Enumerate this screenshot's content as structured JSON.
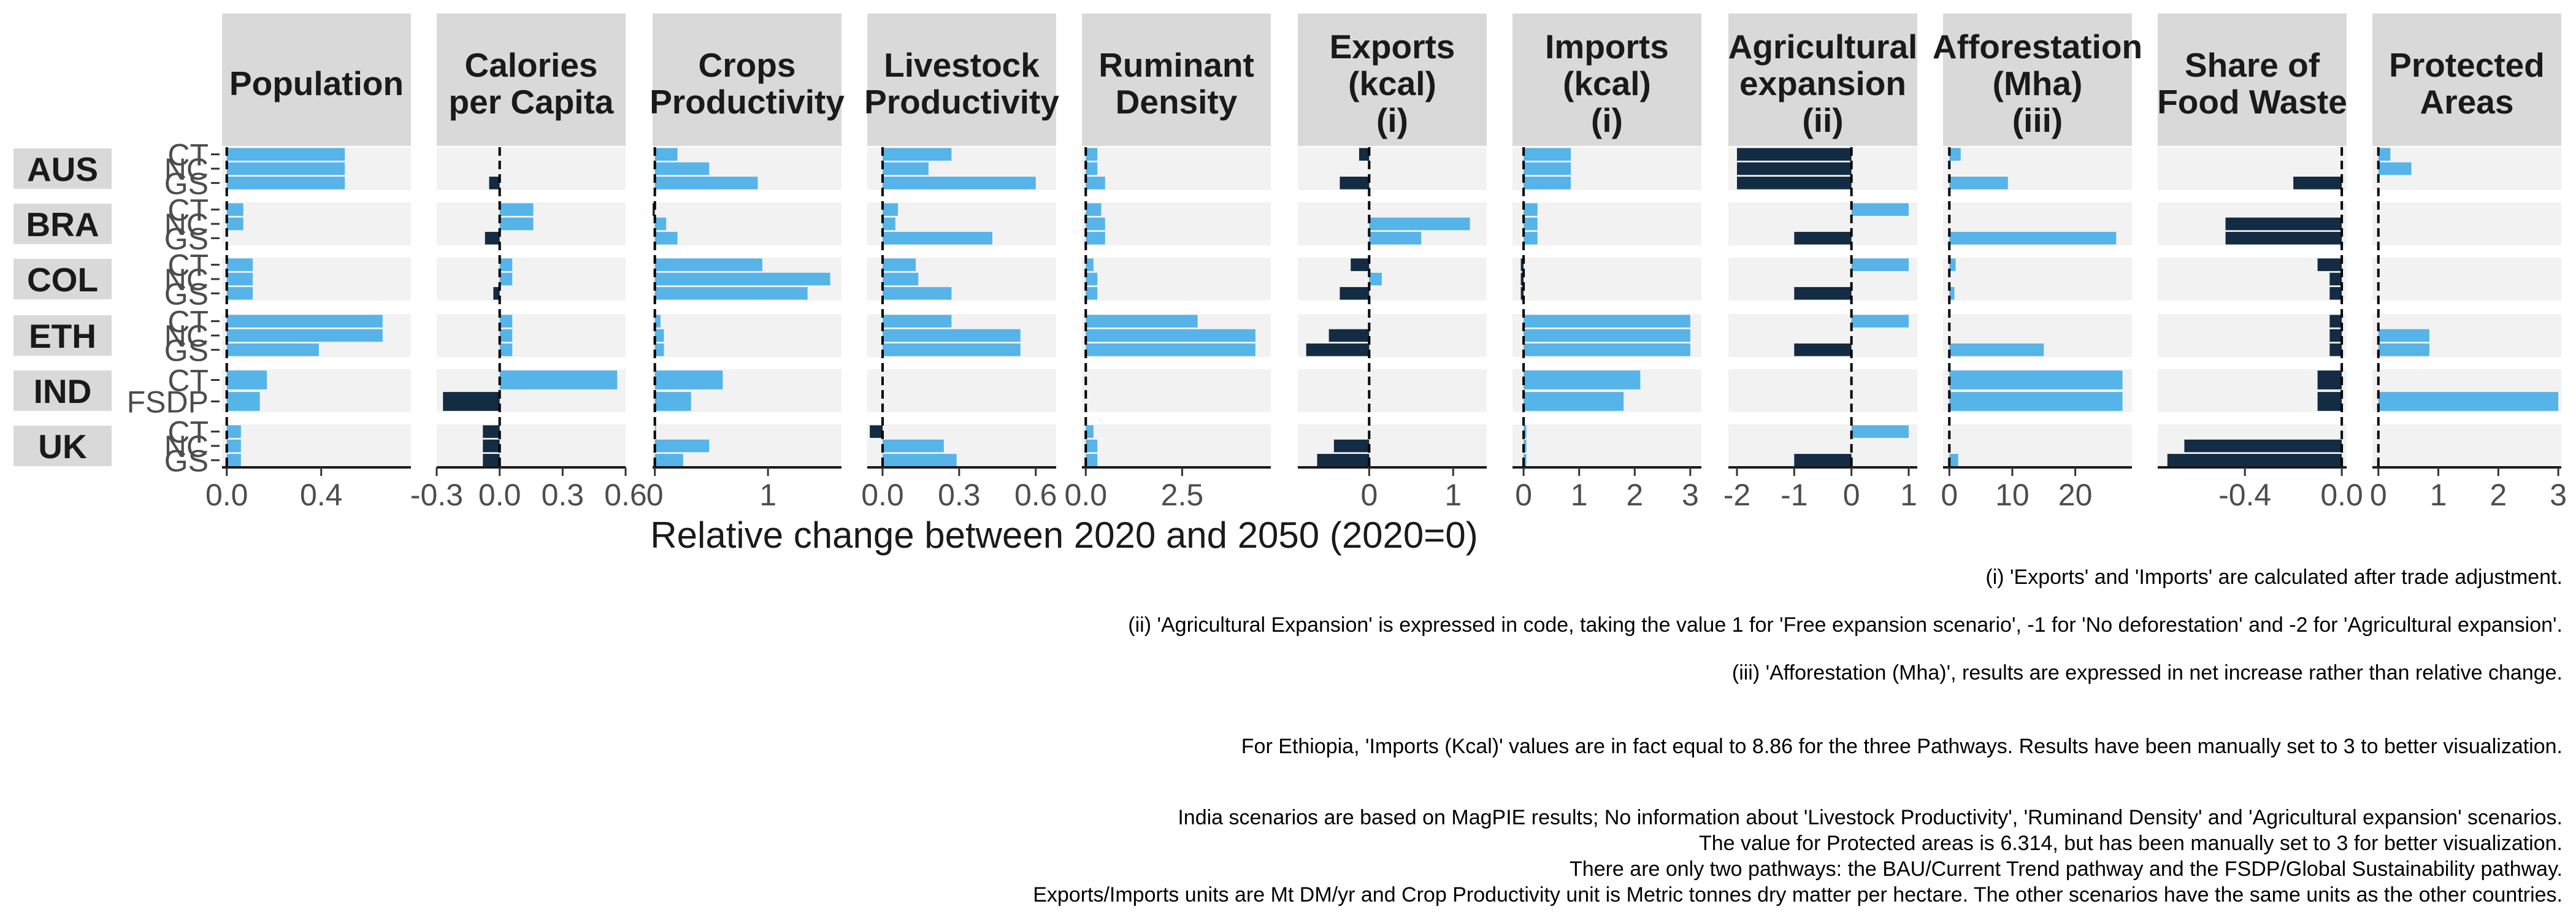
{
  "chart_data": {
    "type": "bar",
    "xlabel": "Relative change between 2020 and 2050 (2020=0)",
    "colors": {
      "positive": "#56B4E9",
      "negative": "#132B43",
      "panel_bg": "#F2F2F2",
      "strip_bg": "#D9D9D9",
      "zero_line": "#000000"
    },
    "countries": [
      "AUS",
      "BRA",
      "COL",
      "ETH",
      "IND",
      "UK"
    ],
    "row_labels": {
      "AUS": [
        "CT",
        "NC",
        "GS"
      ],
      "BRA": [
        "CT",
        "NC",
        "GS"
      ],
      "COL": [
        "CT",
        "NC",
        "GS"
      ],
      "ETH": [
        "CT",
        "NC",
        "GS"
      ],
      "IND": [
        "CT",
        "FSDP"
      ],
      "UK": [
        "CT",
        "NC",
        "GS"
      ]
    },
    "panels": [
      {
        "title": [
          "Population"
        ],
        "xlim": [
          -0.02,
          0.78
        ],
        "ticks": [
          0.0,
          0.4
        ],
        "tick_labels": [
          "0.0",
          "0.4"
        ],
        "values": {
          "AUS": [
            0.5,
            0.5,
            0.5
          ],
          "BRA": [
            0.07,
            0.07,
            0.0
          ],
          "COL": [
            0.11,
            0.11,
            0.11
          ],
          "ETH": [
            0.66,
            0.66,
            0.39
          ],
          "IND": [
            0.17,
            0.14
          ],
          "UK": [
            0.06,
            0.06,
            0.06
          ]
        }
      },
      {
        "title": [
          "Calories",
          "per Capita"
        ],
        "xlim": [
          -0.3,
          0.6
        ],
        "ticks": [
          -0.3,
          0.0,
          0.3,
          0.6
        ],
        "tick_labels": [
          "-0.3",
          "0.0",
          "0.3",
          "0.6"
        ],
        "values": {
          "AUS": [
            0.0,
            0.0,
            -0.05
          ],
          "BRA": [
            0.16,
            0.16,
            -0.07
          ],
          "COL": [
            0.06,
            0.06,
            -0.03
          ],
          "ETH": [
            0.06,
            0.06,
            0.06
          ],
          "IND": [
            0.56,
            -0.27
          ],
          "UK": [
            -0.08,
            -0.08,
            -0.08
          ]
        }
      },
      {
        "title": [
          "Crops",
          "Productivity"
        ],
        "xlim": [
          -0.02,
          1.65
        ],
        "ticks": [
          0,
          1
        ],
        "tick_labels": [
          "0",
          "1"
        ],
        "values": {
          "AUS": [
            0.2,
            0.48,
            0.91
          ],
          "BRA": [
            -0.09,
            0.1,
            0.2
          ],
          "COL": [
            0.95,
            1.55,
            1.35
          ],
          "ETH": [
            0.05,
            0.08,
            0.08
          ],
          "IND": [
            0.6,
            0.32
          ],
          "UK": [
            0.01,
            0.48,
            0.25
          ]
        }
      },
      {
        "title": [
          "Livestock",
          "Productivity"
        ],
        "xlim": [
          -0.06,
          0.68
        ],
        "ticks": [
          0.0,
          0.3,
          0.6
        ],
        "tick_labels": [
          "0.0",
          "0.3",
          "0.6"
        ],
        "values": {
          "AUS": [
            0.27,
            0.18,
            0.6
          ],
          "BRA": [
            0.06,
            0.05,
            0.43
          ],
          "COL": [
            0.13,
            0.14,
            0.27
          ],
          "ETH": [
            0.27,
            0.54,
            0.54
          ],
          "IND": [
            0.0,
            0.0
          ],
          "UK": [
            -0.05,
            0.24,
            0.29
          ]
        }
      },
      {
        "title": [
          "Ruminant",
          "Density"
        ],
        "xlim": [
          -0.1,
          4.8
        ],
        "ticks": [
          0.0,
          2.5
        ],
        "tick_labels": [
          "0.0",
          "2.5"
        ],
        "values": {
          "AUS": [
            0.3,
            0.3,
            0.5
          ],
          "BRA": [
            0.4,
            0.5,
            0.5
          ],
          "COL": [
            0.2,
            0.3,
            0.3
          ],
          "ETH": [
            2.9,
            4.4,
            4.4
          ],
          "IND": [
            0.0,
            0.0
          ],
          "UK": [
            0.2,
            0.3,
            0.3
          ]
        }
      },
      {
        "title": [
          "Exports",
          "(kcal)",
          "(i)"
        ],
        "xlim": [
          -0.85,
          1.4
        ],
        "ticks": [
          0,
          1
        ],
        "tick_labels": [
          "0",
          "1"
        ],
        "values": {
          "AUS": [
            -0.12,
            0.0,
            -0.35
          ],
          "BRA": [
            0.0,
            1.2,
            0.62
          ],
          "COL": [
            -0.22,
            0.15,
            -0.35
          ],
          "ETH": [
            0.0,
            -0.48,
            -0.75
          ],
          "IND": [
            0.0,
            0.0
          ],
          "UK": [
            0.0,
            -0.42,
            -0.62
          ]
        }
      },
      {
        "title": [
          "Imports",
          "(kcal)",
          "(i)"
        ],
        "xlim": [
          -0.2,
          3.2
        ],
        "ticks": [
          0,
          1,
          2,
          3
        ],
        "tick_labels": [
          "0",
          "1",
          "2",
          "3"
        ],
        "values": {
          "AUS": [
            0.85,
            0.85,
            0.85
          ],
          "BRA": [
            0.25,
            0.25,
            0.25
          ],
          "COL": [
            -0.05,
            -0.05,
            -0.05
          ],
          "ETH": [
            3.0,
            3.0,
            3.0
          ],
          "IND": [
            2.1,
            1.8
          ],
          "UK": [
            0.05,
            0.05,
            0.05
          ]
        }
      },
      {
        "title": [
          "Agricultural",
          "expansion",
          "(ii)"
        ],
        "xlim": [
          -2.15,
          1.15
        ],
        "ticks": [
          -2,
          -1,
          0,
          1
        ],
        "tick_labels": [
          "-2",
          "-1",
          "0",
          "1"
        ],
        "values": {
          "AUS": [
            -2,
            -2,
            -2
          ],
          "BRA": [
            1,
            0,
            -1
          ],
          "COL": [
            1,
            0,
            -1
          ],
          "ETH": [
            1,
            0,
            -1
          ],
          "IND": [
            0,
            0
          ],
          "UK": [
            1,
            0,
            -1
          ]
        }
      },
      {
        "title": [
          "Afforestation",
          "(Mha)",
          "(iii)"
        ],
        "xlim": [
          -1,
          29
        ],
        "ticks": [
          0,
          10,
          20
        ],
        "tick_labels": [
          "0",
          "10",
          "20"
        ],
        "values": {
          "AUS": [
            1.8,
            0.0,
            9.3
          ],
          "BRA": [
            0.0,
            0.0,
            26.5
          ],
          "COL": [
            1.0,
            0.0,
            0.8
          ],
          "ETH": [
            0.0,
            0.0,
            15.0
          ],
          "IND": [
            27.5,
            27.5
          ],
          "UK": [
            0.0,
            0.0,
            1.4
          ]
        }
      },
      {
        "title": [
          "Share of",
          "Food Waste"
        ],
        "xlim": [
          -0.76,
          0.02
        ],
        "ticks": [
          -0.4,
          0.0
        ],
        "tick_labels": [
          "-0.4",
          "0.0"
        ],
        "values": {
          "AUS": [
            0.0,
            0.0,
            -0.2
          ],
          "BRA": [
            0.0,
            -0.48,
            -0.48
          ],
          "COL": [
            -0.1,
            -0.05,
            -0.05
          ],
          "ETH": [
            -0.05,
            -0.05,
            -0.05
          ],
          "IND": [
            -0.1,
            -0.1
          ],
          "UK": [
            0.0,
            -0.65,
            -0.72
          ]
        }
      },
      {
        "title": [
          "Protected",
          "Areas"
        ],
        "xlim": [
          -0.1,
          3.05
        ],
        "ticks": [
          0,
          1,
          2,
          3
        ],
        "tick_labels": [
          "0",
          "1",
          "2",
          "3"
        ],
        "values": {
          "AUS": [
            0.2,
            0.55,
            0.0
          ],
          "BRA": [
            0.0,
            0.0,
            0.0
          ],
          "COL": [
            0.0,
            0.0,
            0.0
          ],
          "ETH": [
            0.0,
            0.85,
            0.85
          ],
          "IND": [
            0.0,
            3.0
          ],
          "UK": [
            0.0,
            0.0,
            0.0
          ]
        }
      }
    ]
  },
  "notes": {
    "n1": "(i) 'Exports' and 'Imports' are calculated after trade adjustment.",
    "n2": "(ii) 'Agricultural Expansion' is expressed in code, taking the value 1 for 'Free expansion scenario', -1 for 'No deforestation' and -2 for 'Agricultural expansion'.",
    "n3": "(iii) 'Afforestation (Mha)', results are expressed in net increase rather than relative change.",
    "n4": "For Ethiopia, 'Imports (Kcal)' values are in fact equal to 8.86 for the three Pathways. Results have been manually set to 3 to better visualization.",
    "n5": "India scenarios are based on MagPIE results; No information about 'Livestock Productivity', 'Ruminand Density' and 'Agricultural expansion' scenarios.",
    "n6": "The value for Protected areas is 6.314, but has been manually set to 3 for better visualization.",
    "n7": "There are only two pathways: the BAU/Current Trend pathway and the FSDP/Global Sustainability pathway.",
    "n8": "Exports/Imports units are Mt DM/yr and Crop Productivity unit is Metric tonnes dry matter per hectare. The other scenarios have the same units as the other countries."
  }
}
